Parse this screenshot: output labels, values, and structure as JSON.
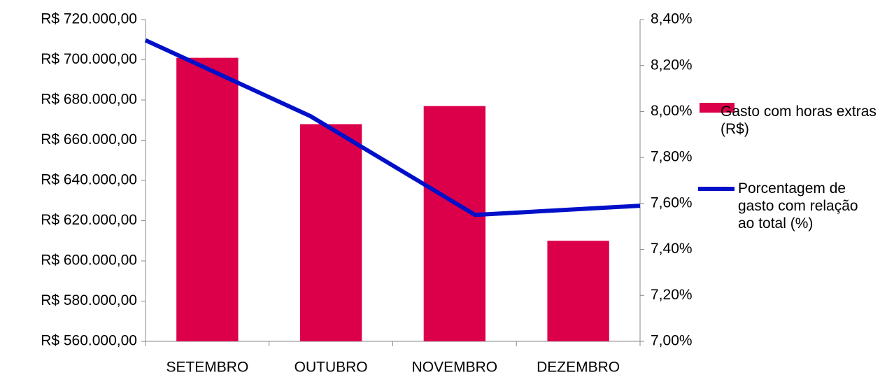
{
  "chart_data": {
    "type": "bar",
    "categories": [
      "SETEMBRO",
      "OUTUBRO",
      "NOVEMBRO",
      "DEZEMBRO"
    ],
    "series": [
      {
        "name": "Gasto com horas extras (R$)",
        "color": "#dc004b",
        "type": "bar",
        "values": [
          701000,
          668000,
          677000,
          610000
        ]
      },
      {
        "name": "Porcentagem de gasto com relação ao total (%)",
        "color": "#0010c8",
        "type": "line",
        "axis": "y2",
        "values": [
          8.31,
          7.98,
          7.55,
          7.59
        ]
      }
    ],
    "ylim": [
      560000,
      720000
    ],
    "yticks": [
      {
        "value": 560000,
        "label": "R$ 560.000,00"
      },
      {
        "value": 580000,
        "label": "R$ 580.000,00"
      },
      {
        "value": 600000,
        "label": "R$ 600.000,00"
      },
      {
        "value": 620000,
        "label": "R$ 620.000,00"
      },
      {
        "value": 640000,
        "label": "R$ 640.000,00"
      },
      {
        "value": 660000,
        "label": "R$ 660.000,00"
      },
      {
        "value": 680000,
        "label": "R$ 680.000,00"
      },
      {
        "value": 700000,
        "label": "R$ 700.000,00"
      },
      {
        "value": 720000,
        "label": "R$ 720.000,00"
      }
    ],
    "y2lim": [
      7.0,
      8.4
    ],
    "y2ticks": [
      {
        "value": 7.0,
        "label": "7,00%"
      },
      {
        "value": 7.2,
        "label": "7,20%"
      },
      {
        "value": 7.4,
        "label": "7,40%"
      },
      {
        "value": 7.6,
        "label": "7,60%"
      },
      {
        "value": 7.8,
        "label": "7,80%"
      },
      {
        "value": 8.0,
        "label": "8,00%"
      },
      {
        "value": 8.2,
        "label": "8,20%"
      },
      {
        "value": 8.4,
        "label": "8,40%"
      }
    ],
    "legend": "right"
  }
}
